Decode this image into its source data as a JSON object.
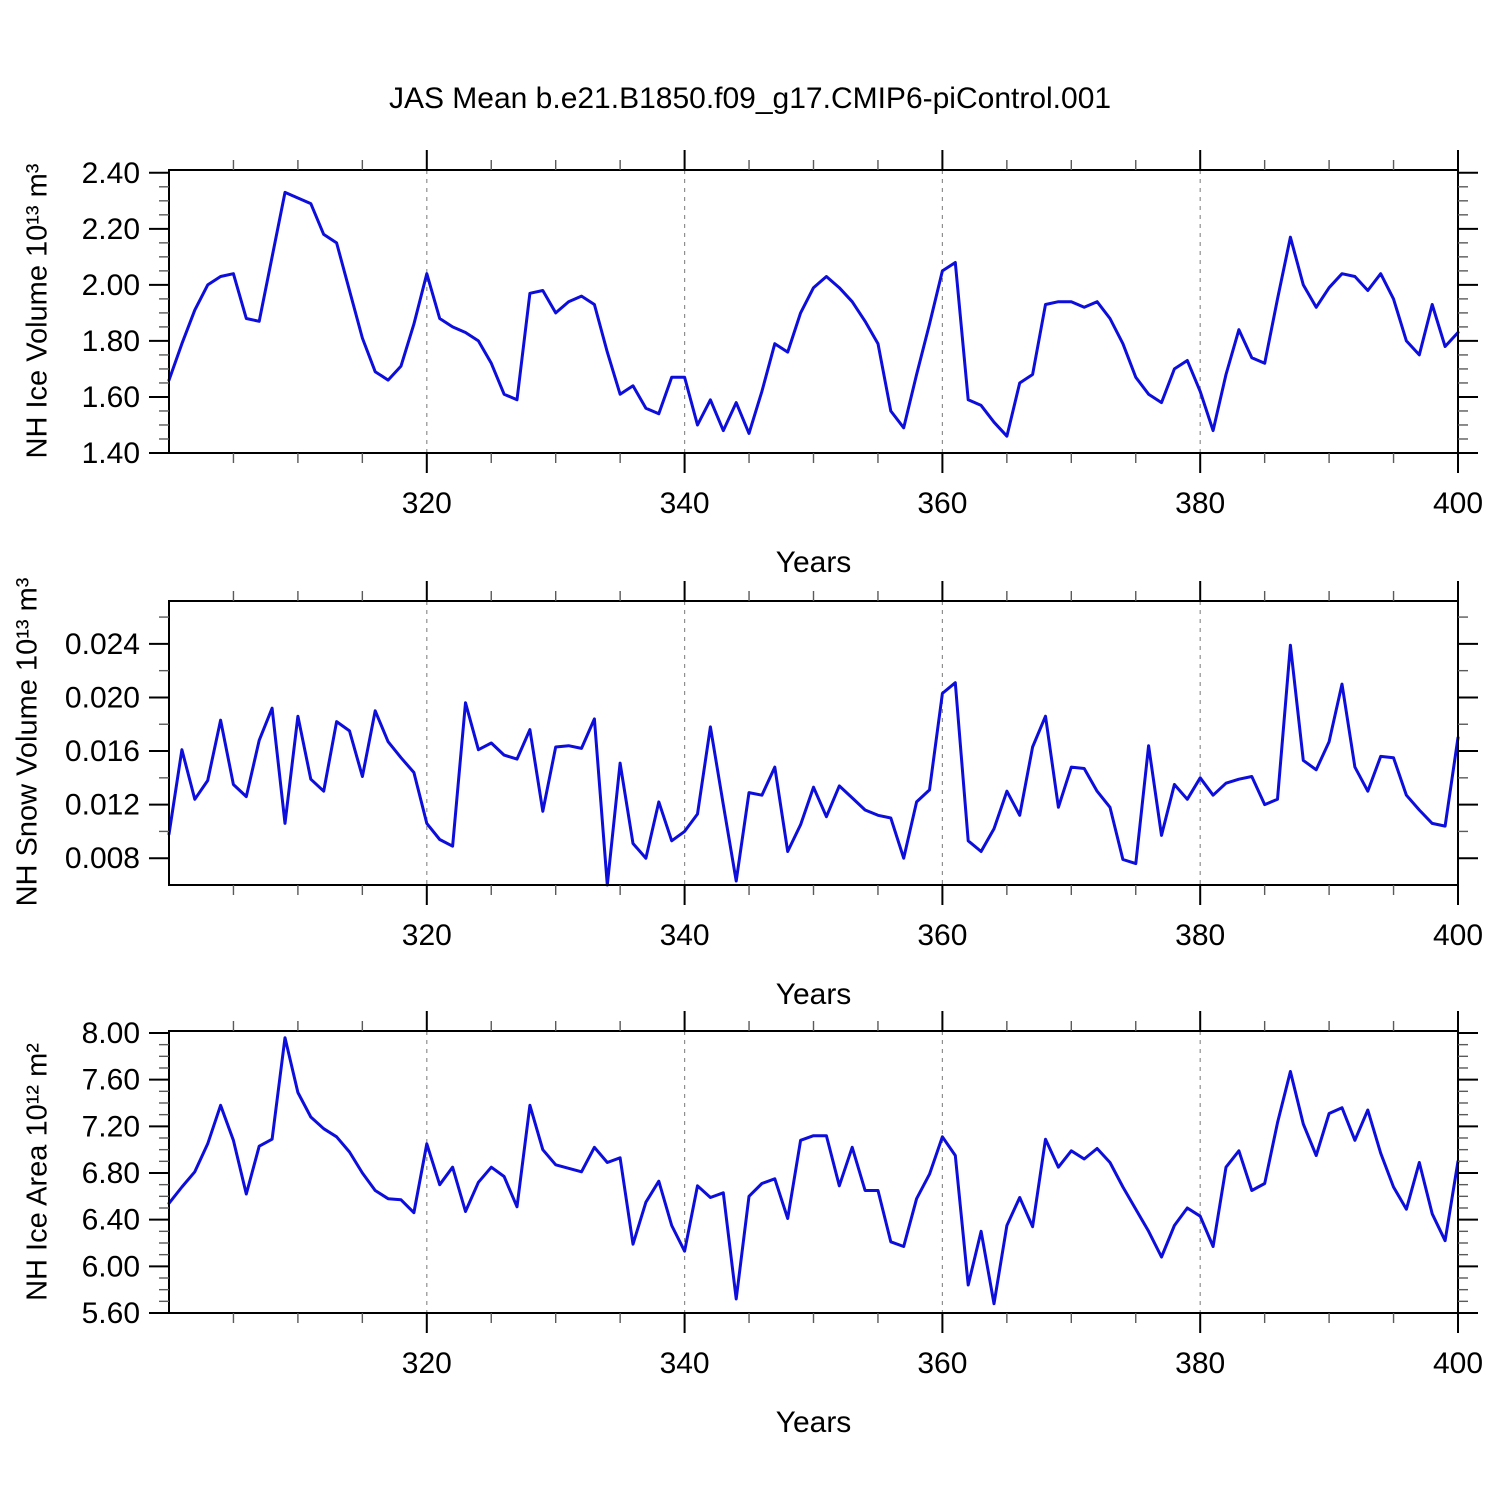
{
  "page": {
    "title": "JAS Mean b.e21.B1850.f09_g17.CMIP6-piControl.001",
    "background": "#ffffff"
  },
  "style": {
    "line_color": "#0d0ddc",
    "axis_color": "#000000",
    "gridline_color": "#8f8f8f",
    "minor_tick_color": "#5a5a5a"
  },
  "years": [
    300,
    301,
    302,
    303,
    304,
    305,
    306,
    307,
    308,
    309,
    310,
    311,
    312,
    313,
    314,
    315,
    316,
    317,
    318,
    319,
    320,
    321,
    322,
    323,
    324,
    325,
    326,
    327,
    328,
    329,
    330,
    331,
    332,
    333,
    334,
    335,
    336,
    337,
    338,
    339,
    340,
    341,
    342,
    343,
    344,
    345,
    346,
    347,
    348,
    349,
    350,
    351,
    352,
    353,
    354,
    355,
    356,
    357,
    358,
    359,
    360,
    361,
    362,
    363,
    364,
    365,
    366,
    367,
    368,
    369,
    370,
    371,
    372,
    373,
    374,
    375,
    376,
    377,
    378,
    379,
    380,
    381,
    382,
    383,
    384,
    385,
    386,
    387,
    388,
    389,
    390,
    391,
    392,
    393,
    394,
    395,
    396,
    397,
    398,
    399,
    400
  ],
  "chart_data": [
    {
      "type": "line",
      "title": "JAS Mean b.e21.B1850.f09_g17.CMIP6-piControl.001",
      "ylabel": "NH Ice Volume 10¹³ m³",
      "xlabel": "Years",
      "xlim": [
        300,
        400
      ],
      "ylim": [
        1.4,
        2.41
      ],
      "yticks": [
        1.4,
        1.6,
        1.8,
        2.0,
        2.2,
        2.4
      ],
      "ytick_labels": [
        "1.40",
        "1.60",
        "1.80",
        "2.00",
        "2.20",
        "2.40"
      ],
      "y_minor_step": 0.05,
      "xticks": [
        320,
        340,
        360,
        380,
        400
      ],
      "xtick_labels": [
        "320",
        "340",
        "360",
        "380",
        "400"
      ],
      "x_minor_step": 5,
      "x_gridlines": [
        320,
        340,
        360,
        380
      ],
      "grid": "dashed-vertical",
      "legend": "none",
      "line_color": "#0d0ddc",
      "values": [
        1.66,
        1.79,
        1.91,
        2.0,
        2.03,
        2.04,
        1.88,
        1.87,
        2.1,
        2.33,
        2.31,
        2.29,
        2.18,
        2.15,
        1.98,
        1.81,
        1.69,
        1.66,
        1.71,
        1.86,
        2.04,
        1.88,
        1.85,
        1.83,
        1.8,
        1.72,
        1.61,
        1.59,
        1.97,
        1.98,
        1.9,
        1.94,
        1.96,
        1.93,
        1.76,
        1.61,
        1.64,
        1.56,
        1.54,
        1.67,
        1.67,
        1.5,
        1.59,
        1.48,
        1.58,
        1.47,
        1.62,
        1.79,
        1.76,
        1.9,
        1.99,
        2.03,
        1.99,
        1.94,
        1.87,
        1.79,
        1.55,
        1.49,
        1.68,
        1.86,
        2.05,
        2.08,
        1.59,
        1.57,
        1.51,
        1.46,
        1.65,
        1.68,
        1.93,
        1.94,
        1.94,
        1.92,
        1.94,
        1.88,
        1.79,
        1.67,
        1.61,
        1.58,
        1.7,
        1.73,
        1.62,
        1.48,
        1.68,
        1.84,
        1.74,
        1.72,
        1.95,
        2.17,
        2.0,
        1.92,
        1.99,
        2.04,
        2.03,
        1.98,
        2.04,
        1.95,
        1.8,
        1.75,
        1.93,
        1.78,
        1.83
      ]
    },
    {
      "type": "line",
      "title": "",
      "ylabel": "NH Snow Volume 10¹³ m³",
      "xlabel": "Years",
      "xlim": [
        300,
        400
      ],
      "ylim": [
        0.006,
        0.0272
      ],
      "yticks": [
        0.008,
        0.012,
        0.016,
        0.02,
        0.024
      ],
      "ytick_labels": [
        "0.008",
        "0.012",
        "0.016",
        "0.020",
        "0.024"
      ],
      "y_minor_step": 0.002,
      "xticks": [
        320,
        340,
        360,
        380,
        400
      ],
      "xtick_labels": [
        "320",
        "340",
        "360",
        "380",
        "400"
      ],
      "x_minor_step": 5,
      "x_gridlines": [
        320,
        340,
        360,
        380
      ],
      "grid": "dashed-vertical",
      "legend": "none",
      "line_color": "#0d0ddc",
      "values": [
        0.0098,
        0.0161,
        0.0124,
        0.0138,
        0.0183,
        0.0135,
        0.0126,
        0.0168,
        0.0192,
        0.0106,
        0.0186,
        0.0139,
        0.013,
        0.0182,
        0.0175,
        0.0141,
        0.019,
        0.0167,
        0.0155,
        0.0144,
        0.0106,
        0.0094,
        0.0089,
        0.0196,
        0.0161,
        0.0166,
        0.0157,
        0.0154,
        0.0176,
        0.0115,
        0.0163,
        0.0164,
        0.0162,
        0.0184,
        0.006,
        0.0151,
        0.0091,
        0.008,
        0.0122,
        0.0093,
        0.01,
        0.0113,
        0.0178,
        0.012,
        0.0063,
        0.0129,
        0.0127,
        0.0148,
        0.0085,
        0.0105,
        0.0133,
        0.0111,
        0.0134,
        0.0125,
        0.0116,
        0.0112,
        0.011,
        0.008,
        0.0122,
        0.0131,
        0.0203,
        0.0211,
        0.0093,
        0.0085,
        0.0102,
        0.013,
        0.0112,
        0.0163,
        0.0186,
        0.0118,
        0.0148,
        0.0147,
        0.013,
        0.0118,
        0.0079,
        0.0076,
        0.0164,
        0.0097,
        0.0135,
        0.0124,
        0.014,
        0.0127,
        0.0136,
        0.0139,
        0.0141,
        0.012,
        0.0124,
        0.0239,
        0.0153,
        0.0146,
        0.0167,
        0.021,
        0.0148,
        0.013,
        0.0156,
        0.0155,
        0.0127,
        0.0116,
        0.0106,
        0.0104,
        0.017
      ]
    },
    {
      "type": "line",
      "title": "",
      "ylabel": "NH Ice Area 10¹² m²",
      "xlabel": "Years",
      "xlim": [
        300,
        400
      ],
      "ylim": [
        5.6,
        8.017
      ],
      "yticks": [
        5.6,
        6.0,
        6.4,
        6.8,
        7.2,
        7.6,
        8.0
      ],
      "ytick_labels": [
        "5.60",
        "6.00",
        "6.40",
        "6.80",
        "7.20",
        "7.60",
        "8.00"
      ],
      "y_minor_step": 0.1,
      "xticks": [
        320,
        340,
        360,
        380,
        400
      ],
      "xtick_labels": [
        "320",
        "340",
        "360",
        "380",
        "400"
      ],
      "x_minor_step": 5,
      "x_gridlines": [
        320,
        340,
        360,
        380
      ],
      "grid": "dashed-vertical",
      "legend": "none",
      "line_color": "#0d0ddc",
      "values": [
        6.54,
        6.68,
        6.81,
        7.05,
        7.38,
        7.08,
        6.62,
        7.03,
        7.09,
        7.96,
        7.49,
        7.28,
        7.18,
        7.11,
        6.98,
        6.8,
        6.65,
        6.58,
        6.57,
        6.46,
        7.05,
        6.7,
        6.85,
        6.47,
        6.72,
        6.85,
        6.77,
        6.51,
        7.38,
        7.0,
        6.87,
        6.84,
        6.81,
        7.02,
        6.89,
        6.93,
        6.19,
        6.55,
        6.73,
        6.35,
        6.13,
        6.69,
        6.59,
        6.63,
        5.72,
        6.6,
        6.71,
        6.75,
        6.41,
        7.08,
        7.12,
        7.12,
        6.69,
        7.02,
        6.65,
        6.65,
        6.21,
        6.17,
        6.58,
        6.79,
        7.11,
        6.95,
        5.84,
        6.3,
        5.68,
        6.35,
        6.59,
        6.34,
        7.09,
        6.85,
        6.99,
        6.92,
        7.01,
        6.89,
        6.68,
        6.49,
        6.3,
        6.08,
        6.35,
        6.5,
        6.43,
        6.17,
        6.85,
        6.99,
        6.65,
        6.71,
        7.23,
        7.67,
        7.22,
        6.95,
        7.31,
        7.36,
        7.08,
        7.34,
        6.97,
        6.68,
        6.49,
        6.89,
        6.45,
        6.22,
        6.9
      ]
    }
  ]
}
